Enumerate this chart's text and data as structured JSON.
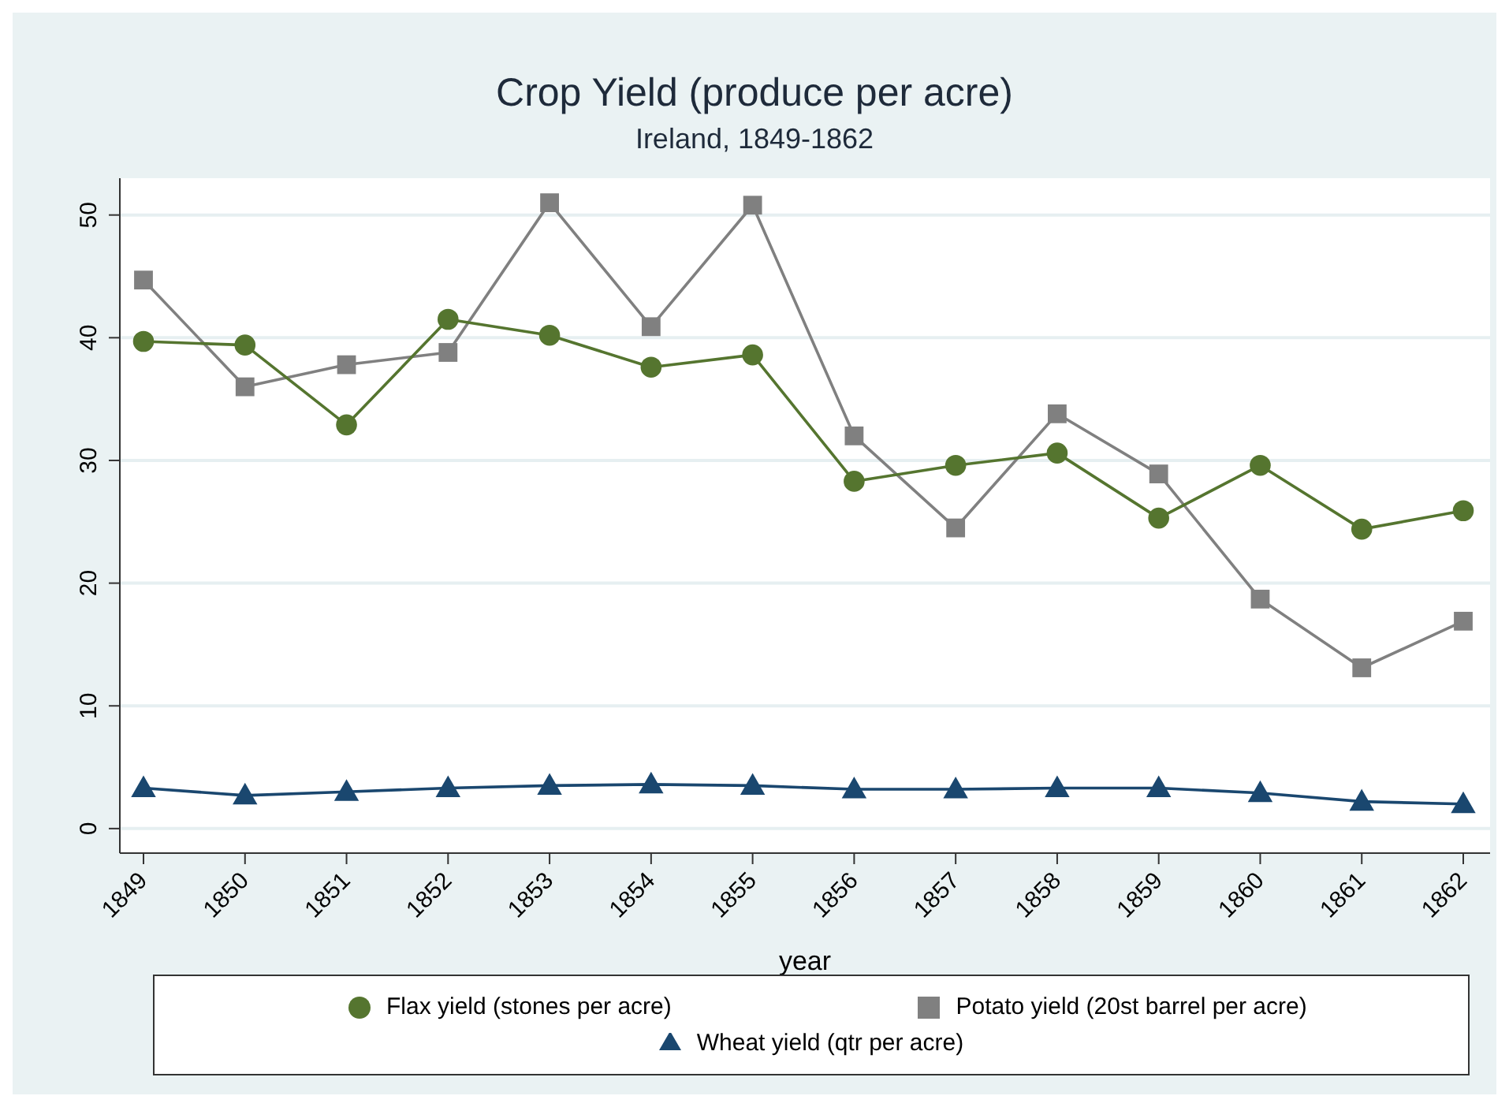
{
  "chart_data": {
    "type": "line",
    "title": "Crop Yield (produce per acre)",
    "subtitle": "Ireland, 1849-1862",
    "xlabel": "year",
    "categories": [
      "1849",
      "1850",
      "1851",
      "1852",
      "1853",
      "1854",
      "1855",
      "1856",
      "1857",
      "1858",
      "1859",
      "1860",
      "1861",
      "1862"
    ],
    "series": [
      {
        "name": "Wheat yield (qtr per acre)",
        "color": "#1a476f",
        "marker": "triangle",
        "values": [
          3.3,
          2.7,
          3.0,
          3.3,
          3.5,
          3.6,
          3.5,
          3.2,
          3.2,
          3.3,
          3.3,
          2.9,
          2.2,
          2.0
        ]
      },
      {
        "name": "Potato yield (20st barrel per acre)",
        "color": "#808080",
        "marker": "square",
        "values": [
          44.7,
          36.0,
          37.8,
          38.8,
          51.0,
          40.9,
          50.8,
          32.0,
          24.5,
          33.8,
          28.9,
          18.7,
          13.1,
          16.9
        ]
      },
      {
        "name": "Flax yield (stones per acre)",
        "color": "#55752f",
        "marker": "circle",
        "values": [
          39.7,
          39.4,
          32.9,
          41.5,
          40.2,
          37.6,
          38.6,
          28.3,
          29.6,
          30.6,
          25.3,
          29.6,
          24.4,
          25.9
        ]
      }
    ],
    "ylim": [
      -2,
      53
    ],
    "yticks": [
      0,
      10,
      20,
      30,
      40,
      50
    ],
    "grid": "y",
    "legend": "bottom",
    "line_style": "solid"
  }
}
